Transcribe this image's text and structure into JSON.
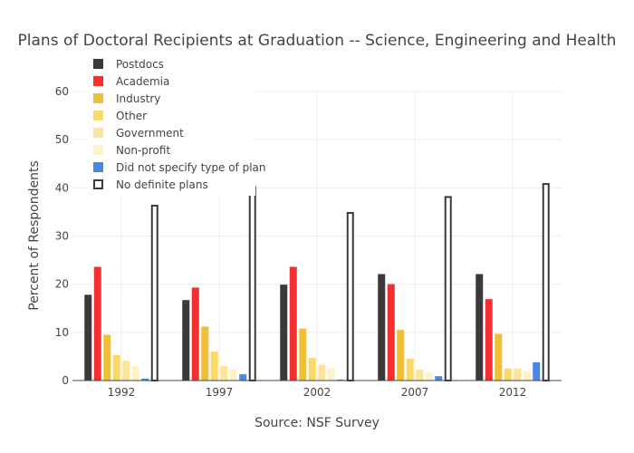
{
  "chart_data": {
    "type": "bar",
    "title": "Plans of Doctoral Recipients at Graduation -- Science, Engineering and Health",
    "xlabel": "Source: NSF Survey",
    "ylabel": "Percent of Respondents",
    "ylim": [
      0,
      60
    ],
    "yticks": [
      0,
      10,
      20,
      30,
      40,
      50,
      60
    ],
    "grid": true,
    "legend_position": "top-left",
    "categories": [
      "1992",
      "1997",
      "2002",
      "2007",
      "2012"
    ],
    "series": [
      {
        "name": "Postdocs",
        "color": "#3a3a3a",
        "values": [
          17.8,
          16.7,
          19.9,
          22.1,
          22.1
        ]
      },
      {
        "name": "Academia",
        "color": "#f42f2f",
        "values": [
          23.6,
          19.3,
          23.6,
          20.0,
          16.9
        ]
      },
      {
        "name": "Industry",
        "color": "#f0bf34",
        "values": [
          9.5,
          11.2,
          10.8,
          10.5,
          9.7
        ]
      },
      {
        "name": "Other",
        "color": "#fcd867",
        "values": [
          5.3,
          6.0,
          4.7,
          4.5,
          2.5
        ]
      },
      {
        "name": "Government",
        "color": "#fde49b",
        "values": [
          4.1,
          3.0,
          3.3,
          2.3,
          2.5
        ]
      },
      {
        "name": "Non-profit",
        "color": "#fff2c6",
        "values": [
          3.0,
          2.4,
          2.6,
          1.7,
          1.9
        ]
      },
      {
        "name": "Did not specify type of plan",
        "color": "#4a86e8",
        "values": [
          0.4,
          1.3,
          0.2,
          0.9,
          3.8
        ]
      },
      {
        "name": "No definite plans",
        "color": "#ffffff",
        "outline": "#3a3a3a",
        "values": [
          36.3,
          40.2,
          34.8,
          38.1,
          40.8
        ]
      }
    ]
  }
}
